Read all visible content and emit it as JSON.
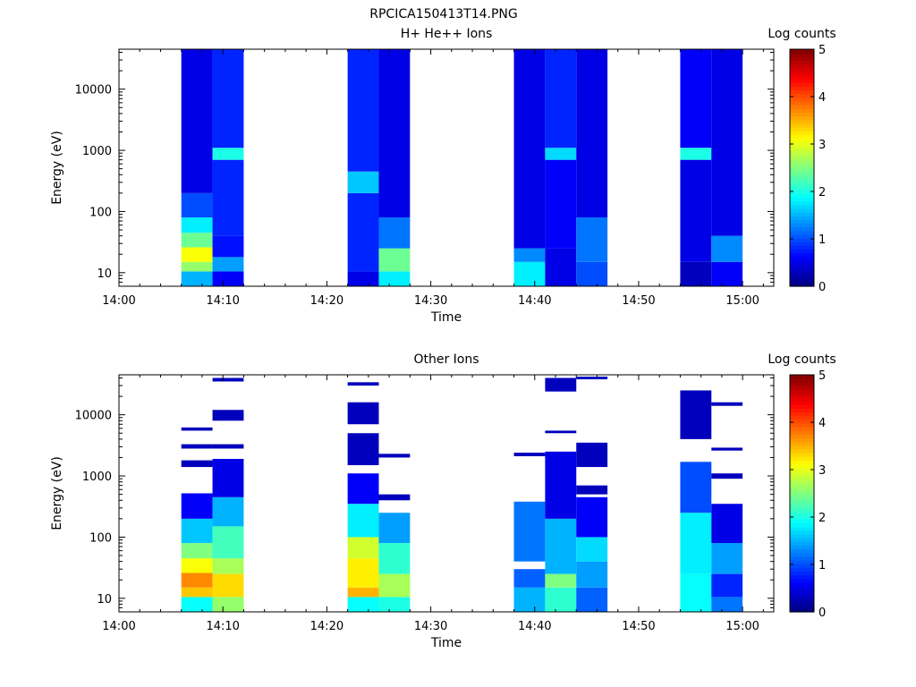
{
  "figure_title": "RPCICA150413T14.PNG",
  "chart_data": [
    {
      "type": "heatmap",
      "title": "H+ He++ Ions",
      "xlabel": "Time",
      "ylabel": "Energy (eV)",
      "colorbar_label": "Log counts",
      "x_ticks": [
        "14:00",
        "14:10",
        "14:20",
        "14:30",
        "14:40",
        "14:50",
        "15:00"
      ],
      "xlim": [
        "14:00",
        "15:03"
      ],
      "y_ticks": [
        "10",
        "100",
        "1000",
        "10000"
      ],
      "ylim": [
        6,
        45000
      ],
      "y_scale": "log",
      "colorbar_ticks": [
        "0",
        "1",
        "2",
        "3",
        "4",
        "5"
      ],
      "clim": [
        0,
        5
      ],
      "colormap": "jet",
      "columns": [
        {
          "start": "14:06",
          "end": "14:09",
          "cells": [
            {
              "energy_range": [
                6,
                10.5
              ],
              "log_counts": 1.5
            },
            {
              "energy_range": [
                10.5,
                15
              ],
              "log_counts": 2.6
            },
            {
              "energy_range": [
                15,
                26
              ],
              "log_counts": 3.1
            },
            {
              "energy_range": [
                26,
                45
              ],
              "log_counts": 2.4
            },
            {
              "energy_range": [
                45,
                80
              ],
              "log_counts": 1.8
            },
            {
              "energy_range": [
                80,
                200
              ],
              "log_counts": 1.0
            },
            {
              "energy_range": [
                200,
                45000
              ],
              "log_counts": 0.5
            }
          ]
        },
        {
          "start": "14:09",
          "end": "14:12",
          "cells": [
            {
              "energy_range": [
                6,
                10.5
              ],
              "log_counts": 0.6
            },
            {
              "energy_range": [
                10.5,
                18
              ],
              "log_counts": 1.4
            },
            {
              "energy_range": [
                18,
                40
              ],
              "log_counts": 0.7
            },
            {
              "energy_range": [
                40,
                700
              ],
              "log_counts": 0.8
            },
            {
              "energy_range": [
                700,
                1100
              ],
              "log_counts": 2.0
            },
            {
              "energy_range": [
                1100,
                45000
              ],
              "log_counts": 0.8
            }
          ]
        },
        {
          "start": "14:22",
          "end": "14:25",
          "cells": [
            {
              "energy_range": [
                6,
                10.5
              ],
              "log_counts": 0.5
            },
            {
              "energy_range": [
                10.5,
                200
              ],
              "log_counts": 0.8
            },
            {
              "energy_range": [
                200,
                450
              ],
              "log_counts": 1.6
            },
            {
              "energy_range": [
                450,
                45000
              ],
              "log_counts": 0.8
            }
          ]
        },
        {
          "start": "14:25",
          "end": "14:28",
          "cells": [
            {
              "energy_range": [
                6,
                10.5
              ],
              "log_counts": 1.8
            },
            {
              "energy_range": [
                10.5,
                25
              ],
              "log_counts": 2.4
            },
            {
              "energy_range": [
                25,
                80
              ],
              "log_counts": 1.2
            },
            {
              "energy_range": [
                80,
                45000
              ],
              "log_counts": 0.5
            }
          ]
        },
        {
          "start": "14:38",
          "end": "14:41",
          "cells": [
            {
              "energy_range": [
                6,
                15
              ],
              "log_counts": 1.8
            },
            {
              "energy_range": [
                15,
                25
              ],
              "log_counts": 1.3
            },
            {
              "energy_range": [
                25,
                45000
              ],
              "log_counts": 0.5
            }
          ]
        },
        {
          "start": "14:41",
          "end": "14:44",
          "cells": [
            {
              "energy_range": [
                6,
                25
              ],
              "log_counts": 0.5
            },
            {
              "energy_range": [
                25,
                700
              ],
              "log_counts": 0.6
            },
            {
              "energy_range": [
                700,
                1100
              ],
              "log_counts": 1.7
            },
            {
              "energy_range": [
                1100,
                45000
              ],
              "log_counts": 0.8
            }
          ]
        },
        {
          "start": "14:44",
          "end": "14:47",
          "cells": [
            {
              "energy_range": [
                6,
                15
              ],
              "log_counts": 1.0
            },
            {
              "energy_range": [
                15,
                80
              ],
              "log_counts": 1.2
            },
            {
              "energy_range": [
                80,
                45000
              ],
              "log_counts": 0.5
            }
          ]
        },
        {
          "start": "14:54",
          "end": "14:57",
          "cells": [
            {
              "energy_range": [
                6,
                15
              ],
              "log_counts": 0.3
            },
            {
              "energy_range": [
                15,
                700
              ],
              "log_counts": 0.5
            },
            {
              "energy_range": [
                700,
                1100
              ],
              "log_counts": 2.0
            },
            {
              "energy_range": [
                1100,
                45000
              ],
              "log_counts": 0.6
            }
          ]
        },
        {
          "start": "14:57",
          "end": "15:00",
          "cells": [
            {
              "energy_range": [
                6,
                15
              ],
              "log_counts": 0.6
            },
            {
              "energy_range": [
                15,
                40
              ],
              "log_counts": 1.3
            },
            {
              "energy_range": [
                40,
                45000
              ],
              "log_counts": 0.5
            }
          ]
        }
      ]
    },
    {
      "type": "heatmap",
      "title": "Other Ions",
      "xlabel": "Time",
      "ylabel": "Energy (eV)",
      "colorbar_label": "Log counts",
      "x_ticks": [
        "14:00",
        "14:10",
        "14:20",
        "14:30",
        "14:40",
        "14:50",
        "15:00"
      ],
      "xlim": [
        "14:00",
        "15:03"
      ],
      "y_ticks": [
        "10",
        "100",
        "1000",
        "10000"
      ],
      "ylim": [
        6,
        45000
      ],
      "y_scale": "log",
      "colorbar_ticks": [
        "0",
        "1",
        "2",
        "3",
        "4",
        "5"
      ],
      "clim": [
        0,
        5
      ],
      "colormap": "jet",
      "columns": [
        {
          "start": "14:06",
          "end": "14:09",
          "cells": [
            {
              "energy_range": [
                6,
                10.5
              ],
              "log_counts": 1.9
            },
            {
              "energy_range": [
                10.5,
                15
              ],
              "log_counts": 3.4
            },
            {
              "energy_range": [
                15,
                26
              ],
              "log_counts": 3.7
            },
            {
              "energy_range": [
                26,
                45
              ],
              "log_counts": 3.1
            },
            {
              "energy_range": [
                45,
                80
              ],
              "log_counts": 2.5
            },
            {
              "energy_range": [
                80,
                200
              ],
              "log_counts": 1.6
            },
            {
              "energy_range": [
                200,
                520
              ],
              "log_counts": 0.6
            },
            {
              "energy_range": [
                1400,
                1800
              ],
              "log_counts": 0.3
            },
            {
              "energy_range": [
                2800,
                3300
              ],
              "log_counts": 0.3
            },
            {
              "energy_range": [
                5500,
                6200
              ],
              "log_counts": 0.3
            }
          ]
        },
        {
          "start": "14:09",
          "end": "14:12",
          "cells": [
            {
              "energy_range": [
                6,
                10.5
              ],
              "log_counts": 2.6
            },
            {
              "energy_range": [
                10.5,
                25
              ],
              "log_counts": 3.3
            },
            {
              "energy_range": [
                25,
                45
              ],
              "log_counts": 2.7
            },
            {
              "energy_range": [
                45,
                150
              ],
              "log_counts": 2.2
            },
            {
              "energy_range": [
                150,
                450
              ],
              "log_counts": 1.5
            },
            {
              "energy_range": [
                450,
                1900
              ],
              "log_counts": 0.5
            },
            {
              "energy_range": [
                2800,
                3300
              ],
              "log_counts": 0.3
            },
            {
              "energy_range": [
                8000,
                12000
              ],
              "log_counts": 0.3
            },
            {
              "energy_range": [
                35000,
                40000
              ],
              "log_counts": 0.3
            }
          ]
        },
        {
          "start": "14:22",
          "end": "14:25",
          "cells": [
            {
              "energy_range": [
                6,
                10.5
              ],
              "log_counts": 1.9
            },
            {
              "energy_range": [
                10.5,
                15
              ],
              "log_counts": 3.5
            },
            {
              "energy_range": [
                15,
                45
              ],
              "log_counts": 3.2
            },
            {
              "energy_range": [
                45,
                100
              ],
              "log_counts": 2.9
            },
            {
              "energy_range": [
                100,
                350
              ],
              "log_counts": 1.8
            },
            {
              "energy_range": [
                350,
                1100
              ],
              "log_counts": 0.6
            },
            {
              "energy_range": [
                1500,
                5000
              ],
              "log_counts": 0.3
            },
            {
              "energy_range": [
                7000,
                16000
              ],
              "log_counts": 0.3
            },
            {
              "energy_range": [
                30000,
                34000
              ],
              "log_counts": 0.3
            }
          ]
        },
        {
          "start": "14:25",
          "end": "14:28",
          "cells": [
            {
              "energy_range": [
                6,
                10.5
              ],
              "log_counts": 2.0
            },
            {
              "energy_range": [
                10.5,
                25
              ],
              "log_counts": 2.7
            },
            {
              "energy_range": [
                25,
                80
              ],
              "log_counts": 2.1
            },
            {
              "energy_range": [
                80,
                250
              ],
              "log_counts": 1.4
            },
            {
              "energy_range": [
                400,
                500
              ],
              "log_counts": 0.3
            },
            {
              "energy_range": [
                2000,
                2300
              ],
              "log_counts": 0.3
            }
          ]
        },
        {
          "start": "14:38",
          "end": "14:41",
          "cells": [
            {
              "energy_range": [
                6,
                15
              ],
              "log_counts": 1.5
            },
            {
              "energy_range": [
                15,
                30
              ],
              "log_counts": 1.1
            },
            {
              "energy_range": [
                40,
                380
              ],
              "log_counts": 1.2
            },
            {
              "energy_range": [
                2100,
                2400
              ],
              "log_counts": 0.3
            }
          ]
        },
        {
          "start": "14:41",
          "end": "14:44",
          "cells": [
            {
              "energy_range": [
                6,
                15
              ],
              "log_counts": 2.1
            },
            {
              "energy_range": [
                15,
                25
              ],
              "log_counts": 2.5
            },
            {
              "energy_range": [
                25,
                200
              ],
              "log_counts": 1.5
            },
            {
              "energy_range": [
                200,
                2500
              ],
              "log_counts": 0.5
            },
            {
              "energy_range": [
                5000,
                5500
              ],
              "log_counts": 0.3
            },
            {
              "energy_range": [
                24000,
                40000
              ],
              "log_counts": 0.3
            }
          ]
        },
        {
          "start": "14:44",
          "end": "14:47",
          "cells": [
            {
              "energy_range": [
                6,
                15
              ],
              "log_counts": 1.1
            },
            {
              "energy_range": [
                15,
                40
              ],
              "log_counts": 1.4
            },
            {
              "energy_range": [
                40,
                100
              ],
              "log_counts": 1.7
            },
            {
              "energy_range": [
                100,
                450
              ],
              "log_counts": 0.6
            },
            {
              "energy_range": [
                500,
                700
              ],
              "log_counts": 0.3
            },
            {
              "energy_range": [
                1400,
                3500
              ],
              "log_counts": 0.3
            },
            {
              "energy_range": [
                38000,
                42000
              ],
              "log_counts": 0.3
            }
          ]
        },
        {
          "start": "14:54",
          "end": "14:57",
          "cells": [
            {
              "energy_range": [
                6,
                25
              ],
              "log_counts": 1.9
            },
            {
              "energy_range": [
                25,
                250
              ],
              "log_counts": 1.8
            },
            {
              "energy_range": [
                250,
                1700
              ],
              "log_counts": 1.0
            },
            {
              "energy_range": [
                4000,
                25000
              ],
              "log_counts": 0.3
            }
          ]
        },
        {
          "start": "14:57",
          "end": "15:00",
          "cells": [
            {
              "energy_range": [
                6,
                10.5
              ],
              "log_counts": 1.2
            },
            {
              "energy_range": [
                10.5,
                25
              ],
              "log_counts": 0.8
            },
            {
              "energy_range": [
                25,
                80
              ],
              "log_counts": 1.4
            },
            {
              "energy_range": [
                80,
                350
              ],
              "log_counts": 0.5
            },
            {
              "energy_range": [
                900,
                1100
              ],
              "log_counts": 0.3
            },
            {
              "energy_range": [
                2600,
                2900
              ],
              "log_counts": 0.3
            },
            {
              "energy_range": [
                14000,
                16000
              ],
              "log_counts": 0.3
            }
          ]
        }
      ]
    }
  ]
}
